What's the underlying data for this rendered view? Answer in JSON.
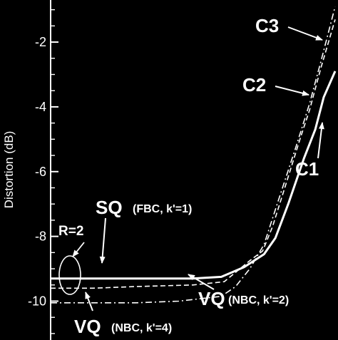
{
  "chart_data": {
    "type": "line",
    "xlabel": "",
    "ylabel": "Distortion (dB)",
    "ylim": [
      -11.2,
      -0.7
    ],
    "xlim": [
      0,
      1
    ],
    "grid": false,
    "y_ticks": [
      -2,
      -4,
      -6,
      -8,
      -10
    ],
    "y_tick_labels": [
      "-2",
      "-4",
      "-6",
      "-8",
      "-10"
    ],
    "series": [
      {
        "id": "sq",
        "style": "solid",
        "x": [
          0.0,
          0.15,
          0.3,
          0.5,
          0.6,
          0.68,
          0.75,
          0.79,
          0.835,
          0.89,
          0.93,
          0.96,
          1.0
        ],
        "y": [
          -9.3,
          -9.3,
          -9.3,
          -9.3,
          -9.25,
          -8.95,
          -8.55,
          -8.05,
          -7.0,
          -5.6,
          -4.7,
          -3.7,
          -2.9
        ]
      },
      {
        "id": "vq2",
        "style": "dashed",
        "x": [
          0.0,
          0.15,
          0.3,
          0.5,
          0.61,
          0.7,
          0.745,
          0.78,
          0.83,
          0.88,
          0.91,
          0.95,
          1.0
        ],
        "y": [
          -9.6,
          -9.6,
          -9.55,
          -9.5,
          -9.4,
          -8.75,
          -8.45,
          -7.7,
          -6.3,
          -4.9,
          -4.1,
          -2.8,
          -1.3
        ]
      },
      {
        "id": "vq4",
        "style": "dashdot",
        "x": [
          0.0,
          0.15,
          0.3,
          0.45,
          0.6,
          0.65,
          0.7,
          0.75,
          0.8,
          0.86,
          0.91,
          0.95,
          1.0
        ],
        "y": [
          -10.05,
          -10.05,
          -10.05,
          -10.0,
          -9.85,
          -9.55,
          -9.0,
          -8.25,
          -6.9,
          -5.3,
          -3.9,
          -2.6,
          -0.9
        ]
      }
    ],
    "annotations": {
      "sq_label": "SQ",
      "sq_sub": "(FBC, k'=1)",
      "vq2_label": "VQ",
      "vq2_sub": "(NBC, k'=2)",
      "vq4_label": "VQ",
      "vq4_sub": "(NBC, k'=4)",
      "r_label": "R=2",
      "c1": "C1",
      "c2": "C2",
      "c3": "C3"
    }
  }
}
